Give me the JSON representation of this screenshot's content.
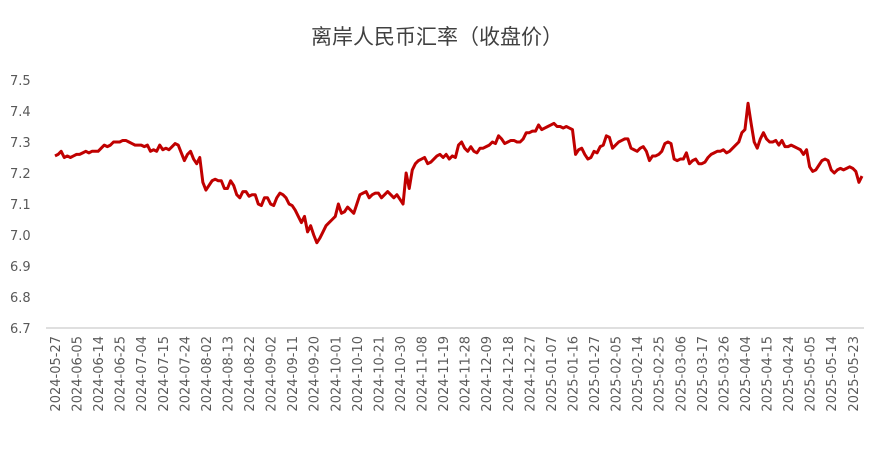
{
  "chart_data": {
    "type": "line",
    "title": "离岸人民币汇率（收盘价）",
    "color": "#c00000",
    "categories": [
      "2024-05-27",
      null,
      null,
      null,
      null,
      null,
      null,
      "2024-06-05",
      null,
      null,
      null,
      null,
      null,
      null,
      "2024-06-14",
      null,
      null,
      null,
      null,
      null,
      null,
      "2024-06-25",
      null,
      null,
      null,
      null,
      null,
      null,
      "2024-07-04",
      null,
      null,
      null,
      null,
      null,
      null,
      "2024-07-15",
      null,
      null,
      null,
      null,
      null,
      null,
      "2024-07-24",
      null,
      null,
      null,
      null,
      null,
      null,
      "2024-08-02",
      null,
      null,
      null,
      null,
      null,
      null,
      "2024-08-13",
      null,
      null,
      null,
      null,
      null,
      null,
      "2024-08-22",
      null,
      null,
      null,
      null,
      null,
      null,
      "2024-09-02",
      null,
      null,
      null,
      null,
      null,
      null,
      "2024-09-11",
      null,
      null,
      null,
      null,
      null,
      null,
      "2024-09-20",
      null,
      null,
      null,
      null,
      null,
      null,
      "2024-10-01",
      null,
      null,
      null,
      null,
      null,
      null,
      "2024-10-10",
      null,
      null,
      null,
      null,
      null,
      null,
      "2024-10-21",
      null,
      null,
      null,
      null,
      null,
      null,
      "2024-10-30",
      null,
      null,
      null,
      null,
      null,
      null,
      "2024-11-08",
      null,
      null,
      null,
      null,
      null,
      null,
      "2024-11-19",
      null,
      null,
      null,
      null,
      null,
      null,
      "2024-11-28",
      null,
      null,
      null,
      null,
      null,
      null,
      "2024-12-09",
      null,
      null,
      null,
      null,
      null,
      null,
      "2024-12-18",
      null,
      null,
      null,
      null,
      null,
      null,
      "2024-12-27",
      null,
      null,
      null,
      null,
      null,
      null,
      "2025-01-07",
      null,
      null,
      null,
      null,
      null,
      null,
      "2025-01-16",
      null,
      null,
      null,
      null,
      null,
      null,
      "2025-01-27",
      null,
      null,
      null,
      null,
      null,
      null,
      "2025-02-05",
      null,
      null,
      null,
      null,
      null,
      null,
      "2025-02-14",
      null,
      null,
      null,
      null,
      null,
      null,
      "2025-02-25",
      null,
      null,
      null,
      null,
      null,
      null,
      "2025-03-06",
      null,
      null,
      null,
      null,
      null,
      null,
      "2025-03-17",
      null,
      null,
      null,
      null,
      null,
      null,
      "2025-03-26",
      null,
      null,
      null,
      null,
      null,
      null,
      "2025-04-04",
      null,
      null,
      null,
      null,
      null,
      null,
      "2025-04-15",
      null,
      null,
      null,
      null,
      null,
      null,
      "2025-04-24",
      null,
      null,
      null,
      null,
      null,
      null,
      "2025-05-05",
      null,
      null,
      null,
      null,
      null,
      null,
      "2025-05-14",
      null,
      null,
      null,
      null,
      null,
      null,
      "2025-05-23",
      null,
      null,
      null
    ],
    "values": [
      7.255,
      7.26,
      7.27,
      7.25,
      7.255,
      7.25,
      7.255,
      7.26,
      7.26,
      7.265,
      7.27,
      7.265,
      7.27,
      7.27,
      7.27,
      7.28,
      7.29,
      7.285,
      7.29,
      7.3,
      7.3,
      7.3,
      7.305,
      7.305,
      7.3,
      7.295,
      7.29,
      7.29,
      7.29,
      7.285,
      7.29,
      7.27,
      7.275,
      7.27,
      7.29,
      7.275,
      7.28,
      7.275,
      7.285,
      7.295,
      7.29,
      7.265,
      7.24,
      7.26,
      7.27,
      7.245,
      7.23,
      7.25,
      7.17,
      7.145,
      7.16,
      7.175,
      7.18,
      7.175,
      7.175,
      7.15,
      7.15,
      7.175,
      7.16,
      7.13,
      7.12,
      7.14,
      7.14,
      7.125,
      7.13,
      7.13,
      7.1,
      7.095,
      7.12,
      7.12,
      7.1,
      7.095,
      7.12,
      7.135,
      7.13,
      7.12,
      7.1,
      7.095,
      7.08,
      7.06,
      7.04,
      7.06,
      7.01,
      7.03,
      7.0,
      6.975,
      6.99,
      7.01,
      7.03,
      7.04,
      7.05,
      7.06,
      7.1,
      7.07,
      7.075,
      7.09,
      7.08,
      7.07,
      7.1,
      7.13,
      7.135,
      7.14,
      7.12,
      7.13,
      7.135,
      7.135,
      7.12,
      7.13,
      7.14,
      7.13,
      7.12,
      7.13,
      7.115,
      7.1,
      7.2,
      7.15,
      7.21,
      7.23,
      7.24,
      7.245,
      7.25,
      7.23,
      7.235,
      7.245,
      7.255,
      7.26,
      7.25,
      7.26,
      7.245,
      7.255,
      7.25,
      7.29,
      7.3,
      7.28,
      7.27,
      7.285,
      7.27,
      7.265,
      7.28,
      7.28,
      7.285,
      7.29,
      7.3,
      7.295,
      7.32,
      7.31,
      7.295,
      7.3,
      7.305,
      7.305,
      7.3,
      7.3,
      7.31,
      7.33,
      7.33,
      7.335,
      7.335,
      7.355,
      7.34,
      7.345,
      7.35,
      7.355,
      7.36,
      7.35,
      7.35,
      7.345,
      7.35,
      7.345,
      7.34,
      7.26,
      7.275,
      7.28,
      7.26,
      7.245,
      7.25,
      7.27,
      7.265,
      7.285,
      7.29,
      7.32,
      7.315,
      7.28,
      7.29,
      7.3,
      7.305,
      7.31,
      7.31,
      7.28,
      7.275,
      7.27,
      7.28,
      7.285,
      7.27,
      7.24,
      7.255,
      7.255,
      7.26,
      7.27,
      7.295,
      7.3,
      7.295,
      7.245,
      7.24,
      7.245,
      7.245,
      7.265,
      7.23,
      7.24,
      7.245,
      7.23,
      7.23,
      7.235,
      7.25,
      7.26,
      7.265,
      7.27,
      7.27,
      7.275,
      7.265,
      7.27,
      7.28,
      7.29,
      7.3,
      7.33,
      7.34,
      7.425,
      7.36,
      7.3,
      7.28,
      7.31,
      7.33,
      7.31,
      7.3,
      7.3,
      7.305,
      7.29,
      7.305,
      7.285,
      7.285,
      7.29,
      7.285,
      7.28,
      7.275,
      7.26,
      7.275,
      7.22,
      7.205,
      7.21,
      7.225,
      7.24,
      7.245,
      7.24,
      7.21,
      7.2,
      7.21,
      7.215,
      7.21,
      7.215,
      7.22,
      7.215,
      7.205,
      7.17,
      7.19
    ],
    "ylim": [
      6.7,
      7.5
    ],
    "yticks": [
      6.7,
      6.8,
      6.9,
      {
        "value": 7,
        "label": "7.0"
      },
      7.1,
      7.2,
      7.3,
      7.4,
      7.5
    ]
  }
}
